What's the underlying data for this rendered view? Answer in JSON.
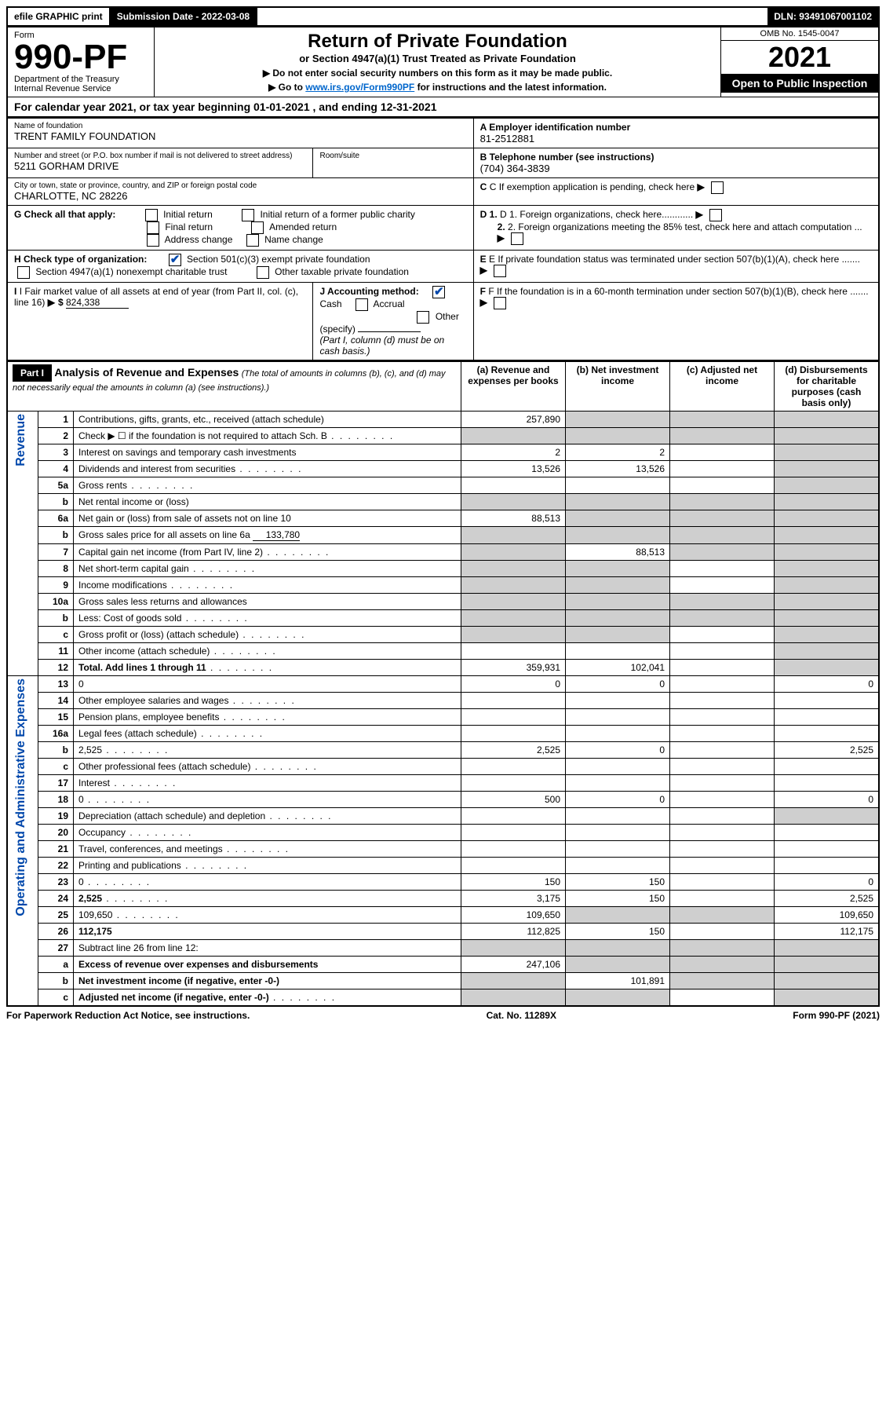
{
  "topbar": {
    "efile": "efile GRAPHIC print",
    "subdate_label": "Submission Date - ",
    "subdate": "2022-03-08",
    "dln_label": "DLN: ",
    "dln": "93491067001102"
  },
  "header": {
    "form_label": "Form",
    "form_no": "990-PF",
    "dept1": "Department of the Treasury",
    "dept2": "Internal Revenue Service",
    "title": "Return of Private Foundation",
    "subtitle": "or Section 4947(a)(1) Trust Treated as Private Foundation",
    "note1": "▶ Do not enter social security numbers on this form as it may be made public.",
    "note2_prefix": "▶ Go to ",
    "note2_link": "www.irs.gov/Form990PF",
    "note2_suffix": " for instructions and the latest information.",
    "omb": "OMB No. 1545-0047",
    "year": "2021",
    "inspection": "Open to Public Inspection"
  },
  "calendar": {
    "text_left": "For calendar year 2021, or tax year beginning ",
    "begin": "01-01-2021",
    "text_mid": " , and ending ",
    "end": "12-31-2021"
  },
  "info": {
    "name_label": "Name of foundation",
    "name": "TRENT FAMILY FOUNDATION",
    "ein_label": "A Employer identification number",
    "ein": "81-2512881",
    "addr_label": "Number and street (or P.O. box number if mail is not delivered to street address)",
    "addr": "5211 GORHAM DRIVE",
    "room_label": "Room/suite",
    "phone_label": "B Telephone number (see instructions)",
    "phone": "(704) 364-3839",
    "city_label": "City or town, state or province, country, and ZIP or foreign postal code",
    "city": "CHARLOTTE, NC  28226",
    "c_label": "C If exemption application is pending, check here",
    "g_label": "G Check all that apply:",
    "g_initial": "Initial return",
    "g_initial_former": "Initial return of a former public charity",
    "g_final": "Final return",
    "g_amended": "Amended return",
    "g_addr": "Address change",
    "g_name": "Name change",
    "d1_label": "D 1. Foreign organizations, check here............",
    "d2_label": "2. Foreign organizations meeting the 85% test, check here and attach computation ...",
    "h_label": "H Check type of organization:",
    "h_501": "Section 501(c)(3) exempt private foundation",
    "h_4947": "Section 4947(a)(1) nonexempt charitable trust",
    "h_other": "Other taxable private foundation",
    "e_label": "E If private foundation status was terminated under section 507(b)(1)(A), check here .......",
    "i_label": "I Fair market value of all assets at end of year (from Part II, col. (c), line 16)",
    "i_value": "824,338",
    "j_label": "J Accounting method:",
    "j_cash": "Cash",
    "j_accrual": "Accrual",
    "j_other": "Other (specify)",
    "j_note": "(Part I, column (d) must be on cash basis.)",
    "f_label": "F  If the foundation is in a 60-month termination under section 507(b)(1)(B), check here .......",
    "dollar": "$"
  },
  "part1": {
    "banner": "Part I",
    "title": "Analysis of Revenue and Expenses",
    "title_note": " (The total of amounts in columns (b), (c), and (d) may not necessarily equal the amounts in column (a) (see instructions).)",
    "col_a": "(a)  Revenue and expenses per books",
    "col_b": "(b)  Net investment income",
    "col_c": "(c)  Adjusted net income",
    "col_d": "(d)  Disbursements for charitable purposes (cash basis only)",
    "side_revenue": "Revenue",
    "side_expense": "Operating and Administrative Expenses",
    "rows": [
      {
        "n": "1",
        "d": "Contributions, gifts, grants, etc., received (attach schedule)",
        "a": "257,890",
        "shade": [
          "b",
          "c",
          "d"
        ]
      },
      {
        "n": "2",
        "d": "Check ▶ ☐ if the foundation is not required to attach Sch. B",
        "shade": [
          "a",
          "b",
          "c",
          "d"
        ],
        "dots": true
      },
      {
        "n": "3",
        "d": "Interest on savings and temporary cash investments",
        "a": "2",
        "b": "2",
        "shade": [
          "d"
        ]
      },
      {
        "n": "4",
        "d": "Dividends and interest from securities",
        "a": "13,526",
        "b": "13,526",
        "shade": [
          "d"
        ],
        "dots": true
      },
      {
        "n": "5a",
        "d": "Gross rents",
        "shade": [
          "d"
        ],
        "dots": true
      },
      {
        "n": "b",
        "d": "Net rental income or (loss)",
        "shade": [
          "a",
          "b",
          "c",
          "d"
        ],
        "inset": true
      },
      {
        "n": "6a",
        "d": "Net gain or (loss) from sale of assets not on line 10",
        "a": "88,513",
        "shade": [
          "b",
          "c",
          "d"
        ]
      },
      {
        "n": "b",
        "d": "Gross sales price for all assets on line 6a",
        "inset_val": "133,780",
        "shade": [
          "a",
          "b",
          "c",
          "d"
        ]
      },
      {
        "n": "7",
        "d": "Capital gain net income (from Part IV, line 2)",
        "b": "88,513",
        "shade": [
          "a",
          "c",
          "d"
        ],
        "dots": true
      },
      {
        "n": "8",
        "d": "Net short-term capital gain",
        "shade": [
          "a",
          "b",
          "d"
        ],
        "dots": true
      },
      {
        "n": "9",
        "d": "Income modifications",
        "shade": [
          "a",
          "b",
          "d"
        ],
        "dots": true
      },
      {
        "n": "10a",
        "d": "Gross sales less returns and allowances",
        "shade": [
          "a",
          "b",
          "c",
          "d"
        ],
        "inset": true
      },
      {
        "n": "b",
        "d": "Less: Cost of goods sold",
        "shade": [
          "a",
          "b",
          "c",
          "d"
        ],
        "inset": true,
        "dots": true
      },
      {
        "n": "c",
        "d": "Gross profit or (loss) (attach schedule)",
        "shade": [
          "a",
          "b",
          "d"
        ],
        "dots": true
      },
      {
        "n": "11",
        "d": "Other income (attach schedule)",
        "shade": [
          "d"
        ],
        "dots": true
      },
      {
        "n": "12",
        "d": "Total. Add lines 1 through 11",
        "a": "359,931",
        "b": "102,041",
        "shade": [
          "d"
        ],
        "bold": true,
        "dots": true
      }
    ],
    "exp_rows": [
      {
        "n": "13",
        "d": "0",
        "a": "0",
        "b": "0"
      },
      {
        "n": "14",
        "d": "Other employee salaries and wages",
        "dots": true
      },
      {
        "n": "15",
        "d": "Pension plans, employee benefits",
        "dots": true
      },
      {
        "n": "16a",
        "d": "Legal fees (attach schedule)",
        "dots": true
      },
      {
        "n": "b",
        "d": "2,525",
        "a": "2,525",
        "b": "0",
        "dots": true
      },
      {
        "n": "c",
        "d": "Other professional fees (attach schedule)",
        "dots": true
      },
      {
        "n": "17",
        "d": "Interest",
        "dots": true
      },
      {
        "n": "18",
        "d": "0",
        "a": "500",
        "b": "0",
        "dots": true
      },
      {
        "n": "19",
        "d": "Depreciation (attach schedule) and depletion",
        "shade": [
          "d"
        ],
        "dots": true
      },
      {
        "n": "20",
        "d": "Occupancy",
        "dots": true
      },
      {
        "n": "21",
        "d": "Travel, conferences, and meetings",
        "dots": true
      },
      {
        "n": "22",
        "d": "Printing and publications",
        "dots": true
      },
      {
        "n": "23",
        "d": "0",
        "a": "150",
        "b": "150",
        "dots": true
      },
      {
        "n": "24",
        "d": "2,525",
        "a": "3,175",
        "b": "150",
        "bold": true,
        "dots": true
      },
      {
        "n": "25",
        "d": "109,650",
        "a": "109,650",
        "shade": [
          "b",
          "c"
        ],
        "dots": true
      },
      {
        "n": "26",
        "d": "112,175",
        "a": "112,825",
        "b": "150",
        "bold": true
      },
      {
        "n": "27",
        "d": "Subtract line 26 from line 12:",
        "shade": [
          "a",
          "b",
          "c",
          "d"
        ]
      },
      {
        "n": "a",
        "d": "Excess of revenue over expenses and disbursements",
        "a": "247,106",
        "shade": [
          "b",
          "c",
          "d"
        ],
        "bold": true
      },
      {
        "n": "b",
        "d": "Net investment income (if negative, enter -0-)",
        "b": "101,891",
        "shade": [
          "a",
          "c",
          "d"
        ],
        "bold": true
      },
      {
        "n": "c",
        "d": "Adjusted net income (if negative, enter -0-)",
        "shade": [
          "a",
          "b",
          "d"
        ],
        "bold": true,
        "dots": true
      }
    ]
  },
  "footer": {
    "left": "For Paperwork Reduction Act Notice, see instructions.",
    "mid": "Cat. No. 11289X",
    "right": "Form 990-PF (2021)"
  }
}
